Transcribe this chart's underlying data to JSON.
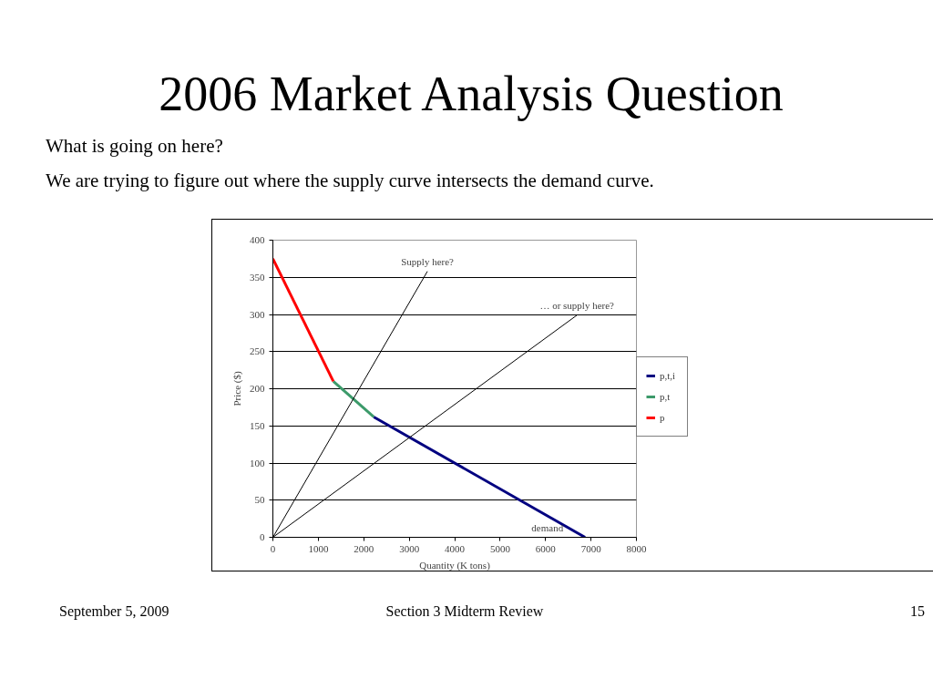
{
  "chart_data": {
    "type": "line",
    "title": "2006 Market Analysis Question",
    "xlabel": "Quantity (K tons)",
    "ylabel": "Price ($)",
    "xlim": [
      0,
      8000
    ],
    "ylim": [
      0,
      400
    ],
    "xticks": [
      0,
      1000,
      2000,
      3000,
      4000,
      5000,
      6000,
      7000,
      8000
    ],
    "yticks": [
      0,
      50,
      100,
      150,
      200,
      250,
      300,
      350,
      400
    ],
    "grid": "y",
    "legend": "right",
    "line_style": "solid",
    "series": [
      {
        "name": "p,t,i",
        "color": "#000080",
        "x": [
          2220,
          6870
        ],
        "values": [
          162,
          0
        ]
      },
      {
        "name": "p,t",
        "color": "#3c9a6a",
        "x": [
          1330,
          2220
        ],
        "values": [
          210,
          162
        ]
      },
      {
        "name": "p",
        "color": "#ff0000",
        "x": [
          0,
          1330
        ],
        "values": [
          375,
          210
        ]
      },
      {
        "color": "#000000",
        "x": [
          0,
          3400
        ],
        "values": [
          0,
          358
        ]
      },
      {
        "color": "#000000",
        "x": [
          0,
          6690
        ],
        "values": [
          0,
          299
        ]
      }
    ],
    "annotations": [
      "What is going on here?",
      "We are trying to figure out where the supply curve intersects the demand curve.",
      {
        "text": "Supply here?",
        "x": 3400,
        "y": 358
      },
      {
        "text": "… or supply here?",
        "x": 6690,
        "y": 299
      },
      {
        "text": "demand",
        "x": 6870,
        "y": 0
      },
      "September 5, 2009",
      "Section 3 Midterm Review",
      "15"
    ]
  }
}
